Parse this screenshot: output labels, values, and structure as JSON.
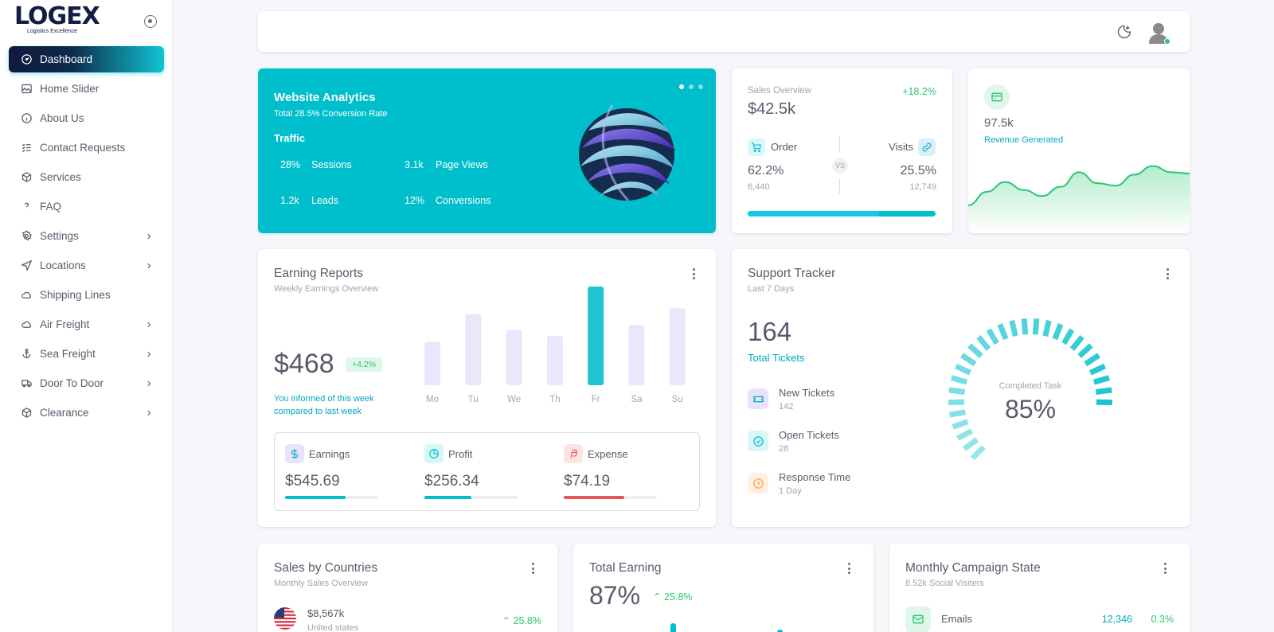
{
  "brand": {
    "logo": "LOGEX",
    "tagline": "Logistics Excellence"
  },
  "sidebar": {
    "items": [
      {
        "label": "Dashboard",
        "icon": "gauge-icon",
        "has_submenu": false
      },
      {
        "label": "Home Slider",
        "icon": "image-icon",
        "has_submenu": false
      },
      {
        "label": "About Us",
        "icon": "info-icon",
        "has_submenu": false
      },
      {
        "label": "Contact Requests",
        "icon": "checklist-icon",
        "has_submenu": false
      },
      {
        "label": "Services",
        "icon": "box-icon",
        "has_submenu": false
      },
      {
        "label": "FAQ",
        "icon": "question-icon",
        "has_submenu": false
      },
      {
        "label": "Settings",
        "icon": "gear-icon",
        "has_submenu": true
      },
      {
        "label": "Locations",
        "icon": "navigation-icon",
        "has_submenu": true
      },
      {
        "label": "Shipping Lines",
        "icon": "cloud-icon",
        "has_submenu": false
      },
      {
        "label": "Air Freight",
        "icon": "cloud-icon",
        "has_submenu": true
      },
      {
        "label": "Sea Freight",
        "icon": "anchor-icon",
        "has_submenu": true
      },
      {
        "label": "Door To Door",
        "icon": "truck-icon",
        "has_submenu": true
      },
      {
        "label": "Clearance",
        "icon": "box-icon",
        "has_submenu": true
      }
    ]
  },
  "analytics": {
    "title": "Website Analytics",
    "subtitle": "Total 28.5% Conversion Rate",
    "section": "Traffic",
    "stats": [
      {
        "value": "28%",
        "label": "Sessions"
      },
      {
        "value": "3.1k",
        "label": "Page Views"
      },
      {
        "value": "1.2k",
        "label": "Leads"
      },
      {
        "value": "12%",
        "label": "Conversions"
      }
    ]
  },
  "sales_overview": {
    "label": "Sales Overview",
    "value": "$42.5k",
    "change": "+18.2%",
    "order": {
      "label": "Order",
      "percent": "62.2%",
      "count": "6,440"
    },
    "visits": {
      "label": "Visits",
      "percent": "25.5%",
      "count": "12,749"
    },
    "vs": "VS",
    "progress_fraction": 0.7
  },
  "revenue": {
    "value": "97.5k",
    "label": "Revenue Generated",
    "series": [
      30,
      52,
      68,
      55,
      45,
      60,
      84,
      66,
      62,
      80,
      94,
      84,
      82
    ]
  },
  "earning_reports": {
    "title": "Earning Reports",
    "subtitle": "Weekly Earnings Overview",
    "amount": "$468",
    "badge": "+4.2%",
    "note": "You informed of this week compared to last week",
    "chart_data": {
      "type": "bar",
      "categories": [
        "Mo",
        "Tu",
        "We",
        "Th",
        "Fr",
        "Sa",
        "Su"
      ],
      "values": [
        44,
        72,
        56,
        50,
        100,
        61,
        78
      ],
      "highlight_index": 4
    },
    "summary": [
      {
        "label": "Earnings",
        "value": "$545.69",
        "fill": 0.65,
        "color": "#00bfcc",
        "icon": "dollar-icon"
      },
      {
        "label": "Profit",
        "value": "$256.34",
        "fill": 0.5,
        "color": "#00bfcc",
        "icon": "pie-chart-icon"
      },
      {
        "label": "Expense",
        "value": "$74.19",
        "fill": 0.65,
        "color": "#ea5455",
        "icon": "brand-paypal-icon"
      }
    ]
  },
  "support_tracker": {
    "title": "Support Tracker",
    "subtitle": "Last 7 Days",
    "total": "164",
    "total_label": "Total Tickets",
    "rows": [
      {
        "label": "New Tickets",
        "value": "142",
        "icon": "ticket-icon"
      },
      {
        "label": "Open Tickets",
        "value": "28",
        "icon": "check-circle-icon"
      },
      {
        "label": "Response Time",
        "value": "1 Day",
        "icon": "clock-icon"
      }
    ],
    "gauge_label": "Completed Task",
    "gauge_value": "85%",
    "gauge_fraction": 0.85
  },
  "sales_countries": {
    "title": "Sales by Countries",
    "subtitle": "Monthly Sales Overview",
    "first": {
      "amount": "$8,567k",
      "country": "United states",
      "change": "25.8%"
    }
  },
  "total_earning": {
    "title": "Total Earning",
    "value": "87%",
    "change": "25.8%"
  },
  "campaign": {
    "title": "Monthly Campaign State",
    "subtitle": "8.52k Social Visiters",
    "first": {
      "label": "Emails",
      "count": "12,346",
      "percent": "0.3%"
    }
  }
}
